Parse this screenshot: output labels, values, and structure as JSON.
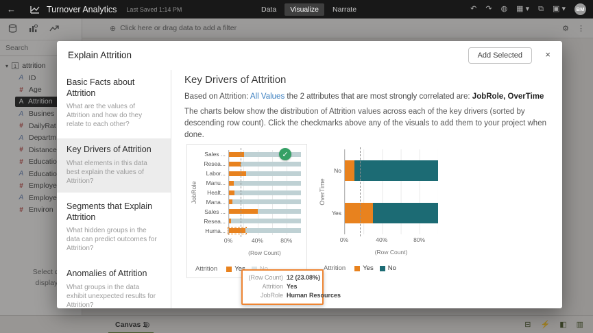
{
  "topbar": {
    "back_icon": "←",
    "title": "Turnover Analytics",
    "saved": "Last Saved 1:14 PM",
    "tabs": [
      {
        "label": "Data",
        "active": false
      },
      {
        "label": "Visualize",
        "active": true
      },
      {
        "label": "Narrate",
        "active": false
      }
    ],
    "icons": [
      {
        "name": "undo-icon",
        "glyph": "↶"
      },
      {
        "name": "redo-icon",
        "glyph": "↷"
      },
      {
        "name": "refresh-data-icon",
        "glyph": "◍"
      },
      {
        "name": "view-menu-icon",
        "glyph": "▦ ▾"
      },
      {
        "name": "present-icon",
        "glyph": "⧉"
      },
      {
        "name": "save-icon",
        "glyph": "▣ ▾"
      }
    ],
    "avatar": "BM"
  },
  "filter_bar": {
    "plus_icon": "⊕",
    "prompt": "Click here or drag data to add a filter",
    "settings_icon": "⚙",
    "kebab_icon": "⋮"
  },
  "sidebar": {
    "search_placeholder": "Search",
    "tree_caret": "▾",
    "dataset_badge": "1",
    "dataset": "attrition",
    "fields": [
      {
        "icon": "A",
        "label": "ID",
        "selected": false
      },
      {
        "icon": "#",
        "label": "Age",
        "selected": false
      },
      {
        "icon": "A",
        "label": "Attrition",
        "selected": true
      },
      {
        "icon": "A",
        "label": "Busines",
        "selected": false
      },
      {
        "icon": "#",
        "label": "DailyRat",
        "selected": false
      },
      {
        "icon": "A",
        "label": "Departm",
        "selected": false
      },
      {
        "icon": "#",
        "label": "Distance",
        "selected": false
      },
      {
        "icon": "#",
        "label": "Educatio",
        "selected": false
      },
      {
        "icon": "A",
        "label": "Educatio",
        "selected": false
      },
      {
        "icon": "#",
        "label": "Employe",
        "selected": false
      },
      {
        "icon": "A",
        "label": "Employe",
        "selected": false
      },
      {
        "icon": "#",
        "label": "Environ",
        "selected": false
      }
    ]
  },
  "status_note": {
    "line1": "Select data",
    "line2": "display pr"
  },
  "canvas_bar": {
    "tab": "Canvas 1",
    "add_icon": "⊕",
    "right_icons": [
      {
        "name": "properties-icon",
        "glyph": "⊟"
      },
      {
        "name": "auto-apply-icon",
        "glyph": "⚡"
      },
      {
        "name": "grammar-panel-icon",
        "glyph": "◧"
      },
      {
        "name": "data-panel-icon",
        "glyph": "▥"
      }
    ]
  },
  "dialog": {
    "title": "Explain Attrition",
    "add_button": "Add Selected",
    "close_icon": "×",
    "nav": [
      {
        "title": "Basic Facts about Attrition",
        "desc": "What are the values of Attrition and how do they relate to each other?",
        "selected": false
      },
      {
        "title": "Key Drivers of Attrition",
        "desc": "What elements in this data best explain the values of Attrition?",
        "selected": true
      },
      {
        "title": "Segments that Explain Attrition",
        "desc": "What hidden groups in the data can predict outcomes for Attrition?",
        "selected": false
      },
      {
        "title": "Anomalies of Attrition",
        "desc": "What groups in the data exhibit unexpected results for Attrition?",
        "selected": false
      }
    ],
    "content": {
      "heading": "Key Drivers of Attrition",
      "based_prefix": "Based on Attrition: ",
      "based_link": "All Values",
      "based_mid": " the 2 attributes that are most strongly correlated are: ",
      "based_bold": "JobRole, OverTime",
      "paragraph": "The charts below show the distribution of Attrition values across each of the key drivers (sorted by descending row count). Click the checkmarks above any of the visuals to add them to your project when done."
    }
  },
  "tooltip": {
    "rows": [
      {
        "label": "(Row Count)",
        "value": "12 (23.08%)"
      },
      {
        "label": "Attrition",
        "value": "Yes"
      },
      {
        "label": "JobRole",
        "value": "Human Resources"
      }
    ]
  },
  "chart_data": [
    {
      "type": "bar",
      "orientation": "horizontal",
      "stacked": true,
      "axis_label": "JobRole",
      "categories": [
        "Sales ...",
        "Resea...",
        "Labor...",
        "Manu...",
        "Healt...",
        "Mana...",
        "Sales ...",
        "Resea...",
        "Huma..."
      ],
      "series": [
        {
          "name": "Yes",
          "color": "#e8821e",
          "values": [
            21,
            16,
            24,
            7,
            8,
            5,
            40,
            2.5,
            23.08
          ]
        },
        {
          "name": "No",
          "color": "#bfd1d4",
          "values": [
            79,
            84,
            76,
            93,
            92,
            95,
            60,
            97.5,
            76.92
          ]
        }
      ],
      "reference_line_pct": 16,
      "xlim": [
        0,
        100
      ],
      "xtick_pcts": [
        0,
        40,
        80
      ],
      "xticks": [
        "0%",
        "40%",
        "80%"
      ],
      "xlabel": "(Row Count)",
      "legend_title": "Attrition",
      "legend": [
        {
          "label": "Yes",
          "color": "#e8821e",
          "faded": false
        },
        {
          "label": "No",
          "color": "#c6d4d8",
          "faded": true
        }
      ],
      "selected_for_add": true,
      "highlight": {
        "row": 8,
        "series": 0
      }
    },
    {
      "type": "bar",
      "orientation": "horizontal",
      "stacked": true,
      "axis_label": "OverTime",
      "categories": [
        "No",
        "Yes"
      ],
      "series": [
        {
          "name": "Yes",
          "color": "#e8821e",
          "values": [
            10.4,
            30.5
          ]
        },
        {
          "name": "No",
          "color": "#1c6b74",
          "values": [
            89.6,
            69.5
          ]
        }
      ],
      "reference_line_pct": 16,
      "xlim": [
        0,
        100
      ],
      "xtick_pcts": [
        0,
        40,
        80
      ],
      "xticks": [
        "0%",
        "40%",
        "80%"
      ],
      "xlabel": "(Row Count)",
      "legend_title": "Attrition",
      "legend": [
        {
          "label": "Yes",
          "color": "#e8821e",
          "faded": false
        },
        {
          "label": "No",
          "color": "#1c6b74",
          "faded": false
        }
      ],
      "selected_for_add": false,
      "highlight": null
    }
  ]
}
